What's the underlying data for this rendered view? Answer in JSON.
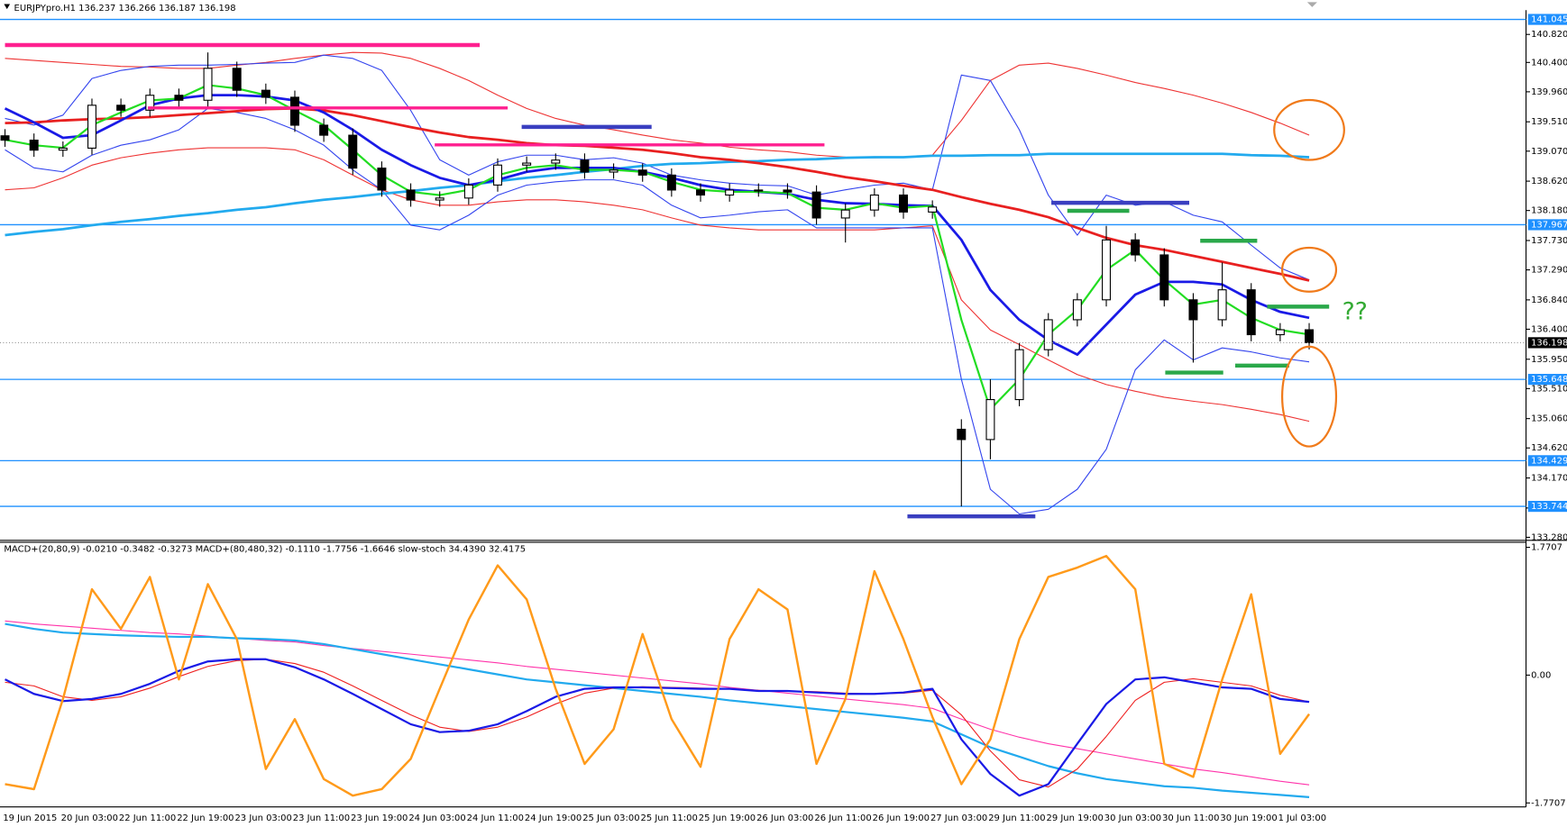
{
  "chart_data": {
    "type": "candlestick",
    "title": "EURJPYpro.H1 136.237 136.266 136.187 136.198",
    "categories": [
      "19 Jun 2015",
      null,
      "20 Jun 03:00",
      null,
      "22 Jun 11:00",
      null,
      "22 Jun 19:00",
      null,
      "23 Jun 03:00",
      null,
      "23 Jun 11:00",
      null,
      "23 Jun 19:00",
      null,
      "24 Jun 03:00",
      null,
      "24 Jun 11:00",
      null,
      "24 Jun 19:00",
      null,
      "25 Jun 03:00",
      null,
      "25 Jun 11:00",
      null,
      "25 Jun 19:00",
      null,
      "26 Jun 03:00",
      null,
      "26 Jun 11:00",
      null,
      "26 Jun 19:00",
      null,
      "27 Jun 03:00",
      null,
      "29 Jun 11:00",
      null,
      "29 Jun 19:00",
      null,
      "30 Jun 03:00",
      null,
      "30 Jun 11:00",
      null,
      "30 Jun 19:00",
      null,
      "1 Jul 03:00",
      null
    ],
    "open": [
      139.3,
      139.235,
      139.085,
      139.115,
      139.758,
      139.684,
      139.908,
      139.833,
      140.312,
      139.983,
      139.878,
      139.459,
      139.309,
      138.816,
      138.487,
      138.337,
      138.367,
      138.562,
      138.861,
      138.891,
      138.936,
      138.756,
      138.786,
      138.711,
      138.487,
      138.412,
      138.487,
      138.487,
      138.457,
      138.068,
      138.187,
      138.412,
      138.157,
      134.9,
      134.746,
      135.345,
      136.093,
      136.542,
      136.841,
      137.739,
      137.514,
      136.841,
      136.542,
      136.991,
      136.318,
      136.392
    ],
    "high": [
      139.4,
      139.335,
      139.215,
      139.858,
      139.858,
      140.008,
      140.008,
      140.55,
      140.412,
      140.083,
      139.978,
      139.559,
      139.409,
      138.916,
      138.587,
      138.467,
      138.662,
      138.961,
      138.991,
      139.036,
      139.036,
      138.886,
      138.886,
      138.811,
      138.587,
      138.587,
      138.587,
      138.587,
      138.557,
      138.287,
      138.512,
      138.512,
      138.332,
      135.05,
      135.65,
      136.193,
      136.642,
      136.941,
      137.95,
      137.839,
      137.614,
      136.941,
      137.4,
      137.091,
      136.492,
      136.492
    ],
    "low": [
      139.135,
      138.985,
      138.985,
      139.015,
      139.584,
      139.584,
      139.733,
      139.733,
      139.883,
      139.778,
      139.359,
      139.209,
      138.716,
      138.387,
      138.237,
      138.237,
      138.267,
      138.462,
      138.761,
      138.791,
      138.656,
      138.656,
      138.611,
      138.387,
      138.312,
      138.312,
      138.387,
      138.357,
      137.968,
      137.7,
      138.087,
      138.057,
      138.057,
      133.744,
      134.45,
      135.245,
      135.993,
      136.442,
      136.741,
      137.414,
      136.741,
      135.9,
      136.442,
      136.218,
      136.218,
      136.098
    ],
    "close": [
      139.235,
      139.085,
      139.115,
      139.758,
      139.684,
      139.908,
      139.833,
      140.312,
      139.983,
      139.878,
      139.459,
      139.309,
      138.816,
      138.487,
      138.337,
      138.367,
      138.562,
      138.861,
      138.891,
      138.936,
      138.756,
      138.786,
      138.711,
      138.487,
      138.412,
      138.487,
      138.487,
      138.457,
      138.068,
      138.187,
      138.412,
      138.157,
      138.232,
      134.746,
      135.345,
      136.093,
      136.542,
      136.841,
      137.739,
      137.514,
      136.841,
      136.542,
      136.991,
      136.318,
      136.392,
      136.198
    ],
    "overlays": [
      {
        "color": "#ee3333",
        "width": 1,
        "values": [
          140.46,
          140.43,
          140.4,
          140.37,
          140.34,
          140.33,
          140.31,
          140.31,
          140.36,
          140.4,
          140.46,
          140.51,
          140.55,
          140.54,
          140.46,
          140.31,
          140.13,
          139.91,
          139.71,
          139.56,
          139.46,
          139.39,
          139.31,
          139.24,
          139.19,
          139.13,
          139.09,
          139.06,
          139.01,
          138.98,
          138.97,
          138.98,
          139.01,
          139.53,
          140.13,
          140.36,
          140.39,
          140.31,
          140.21,
          140.1,
          140.01,
          139.91,
          139.79,
          139.65,
          139.49,
          139.31
        ]
      },
      {
        "color": "#ee3333",
        "width": 1,
        "values": [
          138.49,
          138.52,
          138.67,
          138.86,
          138.97,
          139.04,
          139.09,
          139.12,
          139.12,
          139.12,
          139.09,
          138.94,
          138.71,
          138.49,
          138.34,
          138.26,
          138.26,
          138.31,
          138.34,
          138.34,
          138.31,
          138.26,
          138.19,
          138.07,
          137.96,
          137.92,
          137.89,
          137.89,
          137.89,
          137.89,
          137.89,
          137.92,
          137.95,
          136.84,
          136.39,
          136.17,
          135.94,
          135.72,
          135.57,
          135.47,
          135.38,
          135.32,
          135.27,
          135.2,
          135.12,
          135.02
        ]
      },
      {
        "color": "#3344ee",
        "width": 1,
        "values": [
          139.56,
          139.46,
          139.61,
          140.16,
          140.28,
          140.34,
          140.36,
          140.36,
          140.37,
          140.39,
          140.4,
          140.51,
          140.46,
          140.28,
          139.68,
          138.94,
          138.71,
          138.91,
          139.01,
          139.01,
          138.94,
          138.97,
          138.89,
          138.71,
          138.64,
          138.59,
          138.56,
          138.55,
          138.41,
          138.49,
          138.56,
          138.59,
          138.49,
          140.21,
          140.13,
          139.39,
          138.41,
          137.81,
          138.41,
          138.26,
          138.31,
          138.11,
          138.01,
          137.66,
          137.32,
          137.14
        ]
      },
      {
        "color": "#3344ee",
        "width": 1,
        "values": [
          139.09,
          138.82,
          138.76,
          139.01,
          139.16,
          139.24,
          139.39,
          139.71,
          139.65,
          139.56,
          139.39,
          139.16,
          138.79,
          138.49,
          137.96,
          137.89,
          138.11,
          138.41,
          138.56,
          138.61,
          138.64,
          138.64,
          138.56,
          138.26,
          138.07,
          138.11,
          138.16,
          138.19,
          137.92,
          137.92,
          137.92,
          137.92,
          137.92,
          135.65,
          134.0,
          133.63,
          133.7,
          134.0,
          134.6,
          135.79,
          136.24,
          135.94,
          136.12,
          136.06,
          135.97,
          135.91
        ]
      },
      {
        "color": "#22aaee",
        "width": 2.5,
        "values": [
          137.81,
          137.86,
          137.9,
          137.96,
          138.01,
          138.05,
          138.1,
          138.14,
          138.19,
          138.23,
          138.29,
          138.34,
          138.38,
          138.43,
          138.47,
          138.52,
          138.56,
          138.62,
          138.67,
          138.71,
          138.76,
          138.8,
          138.85,
          138.88,
          138.89,
          138.91,
          138.92,
          138.94,
          138.95,
          138.97,
          138.98,
          138.98,
          139.0,
          139.0,
          139.01,
          139.01,
          139.03,
          139.03,
          139.03,
          139.03,
          139.03,
          139.03,
          139.03,
          139.01,
          139.0,
          138.98
        ]
      },
      {
        "color": "#e82020",
        "width": 2.5,
        "values": [
          139.49,
          139.5,
          139.53,
          139.55,
          139.56,
          139.58,
          139.61,
          139.64,
          139.67,
          139.7,
          139.71,
          139.68,
          139.61,
          139.52,
          139.43,
          139.35,
          139.28,
          139.24,
          139.19,
          139.16,
          139.15,
          139.12,
          139.09,
          139.04,
          138.98,
          138.94,
          138.89,
          138.83,
          138.76,
          138.68,
          138.62,
          138.55,
          138.49,
          138.38,
          138.28,
          138.19,
          138.08,
          137.92,
          137.77,
          137.66,
          137.59,
          137.5,
          137.41,
          137.32,
          137.23,
          137.13
        ]
      },
      {
        "color": "#1a1ae6",
        "width": 2.5,
        "values": [
          139.71,
          139.5,
          139.27,
          139.31,
          139.53,
          139.76,
          139.86,
          139.91,
          139.91,
          139.89,
          139.83,
          139.65,
          139.39,
          139.09,
          138.86,
          138.67,
          138.56,
          138.64,
          138.76,
          138.82,
          138.82,
          138.82,
          138.76,
          138.67,
          138.56,
          138.49,
          138.46,
          138.43,
          138.34,
          138.29,
          138.28,
          138.26,
          138.25,
          137.74,
          136.99,
          136.54,
          136.24,
          136.02,
          136.47,
          136.92,
          137.11,
          137.11,
          137.07,
          136.84,
          136.66,
          136.57
        ]
      },
      {
        "color": "#22dd22",
        "width": 2,
        "values": [
          139.24,
          139.16,
          139.12,
          139.46,
          139.65,
          139.83,
          139.86,
          140.06,
          140.01,
          139.91,
          139.68,
          139.46,
          139.09,
          138.71,
          138.46,
          138.41,
          138.49,
          138.71,
          138.82,
          138.86,
          138.79,
          138.79,
          138.76,
          138.61,
          138.49,
          138.46,
          138.46,
          138.44,
          138.22,
          138.19,
          138.29,
          138.22,
          138.25,
          136.54,
          135.2,
          135.65,
          136.32,
          136.69,
          137.29,
          137.59,
          137.14,
          136.77,
          136.84,
          136.57,
          136.39,
          136.32
        ]
      }
    ],
    "ylim": [
      133.25,
      141.14
    ],
    "yticks": [
      {
        "value": 140.82,
        "label": "140.820"
      },
      {
        "value": 140.4,
        "label": "140.400"
      },
      {
        "value": 139.96,
        "label": "139.960"
      },
      {
        "value": 139.51,
        "label": "139.510"
      },
      {
        "value": 139.07,
        "label": "139.070"
      },
      {
        "value": 138.62,
        "label": "138.620"
      },
      {
        "value": 138.18,
        "label": "138.180"
      },
      {
        "value": 137.73,
        "label": "137.730"
      },
      {
        "value": 137.29,
        "label": "137.290"
      },
      {
        "value": 136.84,
        "label": "136.840"
      },
      {
        "value": 136.4,
        "label": "136.400"
      },
      {
        "value": 135.95,
        "label": "135.950"
      },
      {
        "value": 135.51,
        "label": "135.510"
      },
      {
        "value": 135.06,
        "label": "135.060"
      },
      {
        "value": 134.62,
        "label": "134.620"
      },
      {
        "value": 134.17,
        "label": "134.170"
      },
      {
        "value": 133.72,
        "label": "133.720"
      },
      {
        "value": 133.28,
        "label": "133.280"
      }
    ],
    "hlines": [
      141.045,
      137.967,
      135.648,
      134.429,
      133.744
    ],
    "hline_color": "#1e90ff",
    "last_price": 136.198,
    "up_color": "#ffffff",
    "down_color": "#000000",
    "annotation": "??",
    "indicator": {
      "title": "MACD+(20,80,9) -0.0210 -0.3482 -0.3273 MACD+(80,480,32) -0.1110 -1.7756 -1.6646 slow-stoch 34.4390 32.4175",
      "ylim": [
        -1.826,
        1.84
      ],
      "yticks": [
        1.7707,
        {
          "value": 0,
          "label": "0.00"
        },
        -1.7707
      ],
      "series": [
        {
          "color": "#ff33aa",
          "width": 1,
          "values": [
            0.75,
            0.71,
            0.68,
            0.65,
            0.62,
            0.59,
            0.57,
            0.54,
            0.51,
            0.48,
            0.46,
            0.41,
            0.37,
            0.33,
            0.29,
            0.25,
            0.21,
            0.17,
            0.12,
            0.08,
            0.04,
            0.0,
            -0.04,
            -0.08,
            -0.12,
            -0.17,
            -0.21,
            -0.25,
            -0.29,
            -0.33,
            -0.37,
            -0.41,
            -0.46,
            -0.61,
            -0.75,
            -0.86,
            -0.95,
            -1.02,
            -1.09,
            -1.16,
            -1.23,
            -1.3,
            -1.35,
            -1.41,
            -1.47,
            -1.52
          ]
        },
        {
          "color": "#22aaee",
          "width": 2,
          "values": [
            0.71,
            0.64,
            0.59,
            0.57,
            0.55,
            0.54,
            0.53,
            0.53,
            0.51,
            0.5,
            0.48,
            0.43,
            0.36,
            0.29,
            0.22,
            0.15,
            0.08,
            0.01,
            -0.06,
            -0.1,
            -0.14,
            -0.18,
            -0.22,
            -0.26,
            -0.3,
            -0.35,
            -0.39,
            -0.43,
            -0.47,
            -0.51,
            -0.55,
            -0.59,
            -0.64,
            -0.82,
            -1.0,
            -1.13,
            -1.26,
            -1.36,
            -1.44,
            -1.49,
            -1.54,
            -1.56,
            -1.6,
            -1.63,
            -1.66,
            -1.69
          ]
        },
        {
          "color": "#ee2020",
          "width": 1,
          "values": [
            -0.1,
            -0.15,
            -0.3,
            -0.35,
            -0.3,
            -0.18,
            -0.02,
            0.12,
            0.2,
            0.22,
            0.16,
            0.04,
            -0.15,
            -0.35,
            -0.55,
            -0.72,
            -0.78,
            -0.72,
            -0.58,
            -0.4,
            -0.25,
            -0.18,
            -0.16,
            -0.17,
            -0.18,
            -0.19,
            -0.21,
            -0.22,
            -0.23,
            -0.25,
            -0.26,
            -0.25,
            -0.21,
            -0.55,
            -1.05,
            -1.45,
            -1.55,
            -1.3,
            -0.85,
            -0.35,
            -0.1,
            -0.05,
            -0.1,
            -0.15,
            -0.28,
            -0.37
          ]
        },
        {
          "color": "#1a1ae6",
          "width": 2,
          "values": [
            -0.06,
            -0.26,
            -0.36,
            -0.33,
            -0.26,
            -0.12,
            0.06,
            0.19,
            0.22,
            0.22,
            0.11,
            -0.06,
            -0.26,
            -0.47,
            -0.68,
            -0.79,
            -0.77,
            -0.68,
            -0.5,
            -0.3,
            -0.19,
            -0.17,
            -0.17,
            -0.18,
            -0.19,
            -0.19,
            -0.22,
            -0.22,
            -0.24,
            -0.26,
            -0.26,
            -0.24,
            -0.19,
            -0.89,
            -1.37,
            -1.67,
            -1.51,
            -0.95,
            -0.4,
            -0.06,
            -0.03,
            -0.1,
            -0.17,
            -0.19,
            -0.33,
            -0.37
          ]
        },
        {
          "color": "#ff9a1a",
          "width": 2.2,
          "values": [
            -1.51,
            -1.58,
            -0.33,
            1.19,
            0.64,
            1.36,
            -0.06,
            1.26,
            0.5,
            -1.3,
            -0.61,
            -1.44,
            -1.67,
            -1.58,
            -1.16,
            -0.19,
            0.77,
            1.52,
            1.05,
            -0.19,
            -1.23,
            -0.75,
            0.57,
            -0.61,
            -1.27,
            0.5,
            1.19,
            0.91,
            -1.23,
            -0.33,
            1.44,
            0.5,
            -0.58,
            -1.51,
            -0.89,
            0.5,
            1.36,
            1.49,
            1.65,
            1.19,
            -1.23,
            -1.41,
            -0.06,
            1.12,
            -1.09,
            -0.54
          ]
        }
      ]
    }
  }
}
